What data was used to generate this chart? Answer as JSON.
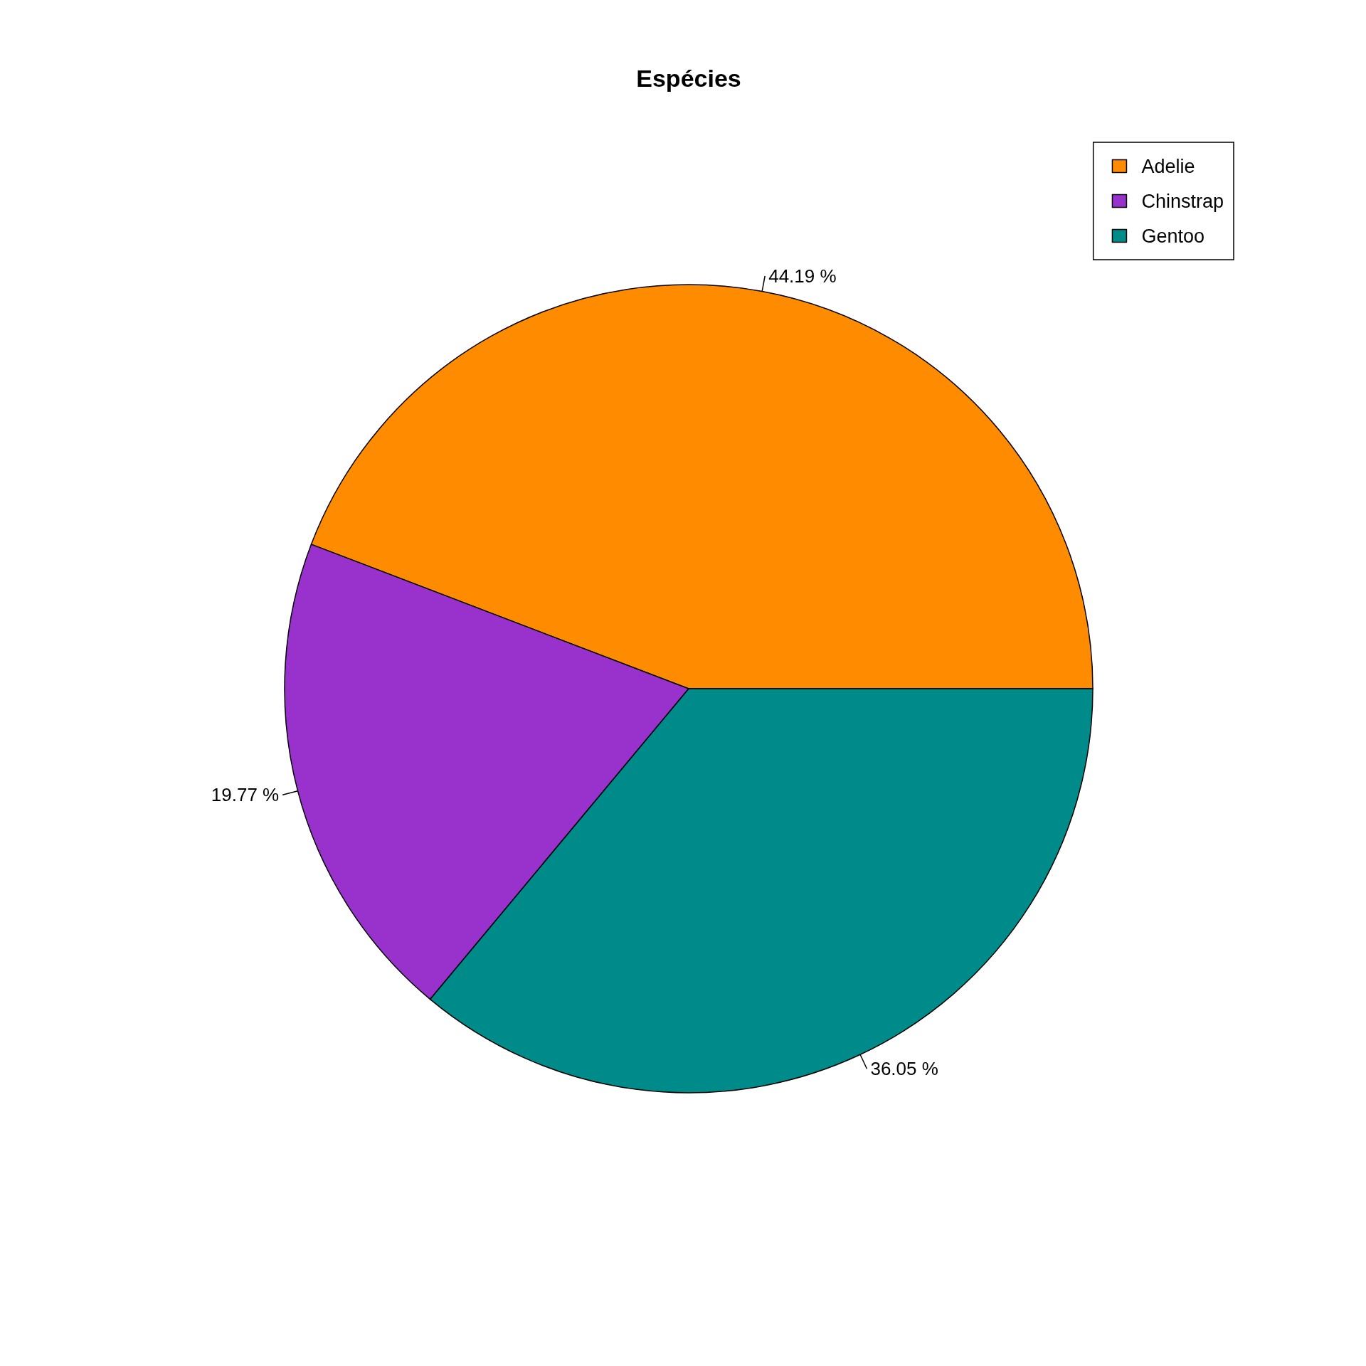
{
  "chart_data": {
    "type": "pie",
    "title": "Espécies",
    "categories": [
      "Adelie",
      "Chinstrap",
      "Gentoo"
    ],
    "values": [
      44.19,
      19.77,
      36.05
    ],
    "value_labels": [
      "44.19 %",
      "19.77 %",
      "36.05 %"
    ],
    "colors": [
      "#ff8c00",
      "#9932cc",
      "#008b8b"
    ],
    "legend": "top right"
  }
}
